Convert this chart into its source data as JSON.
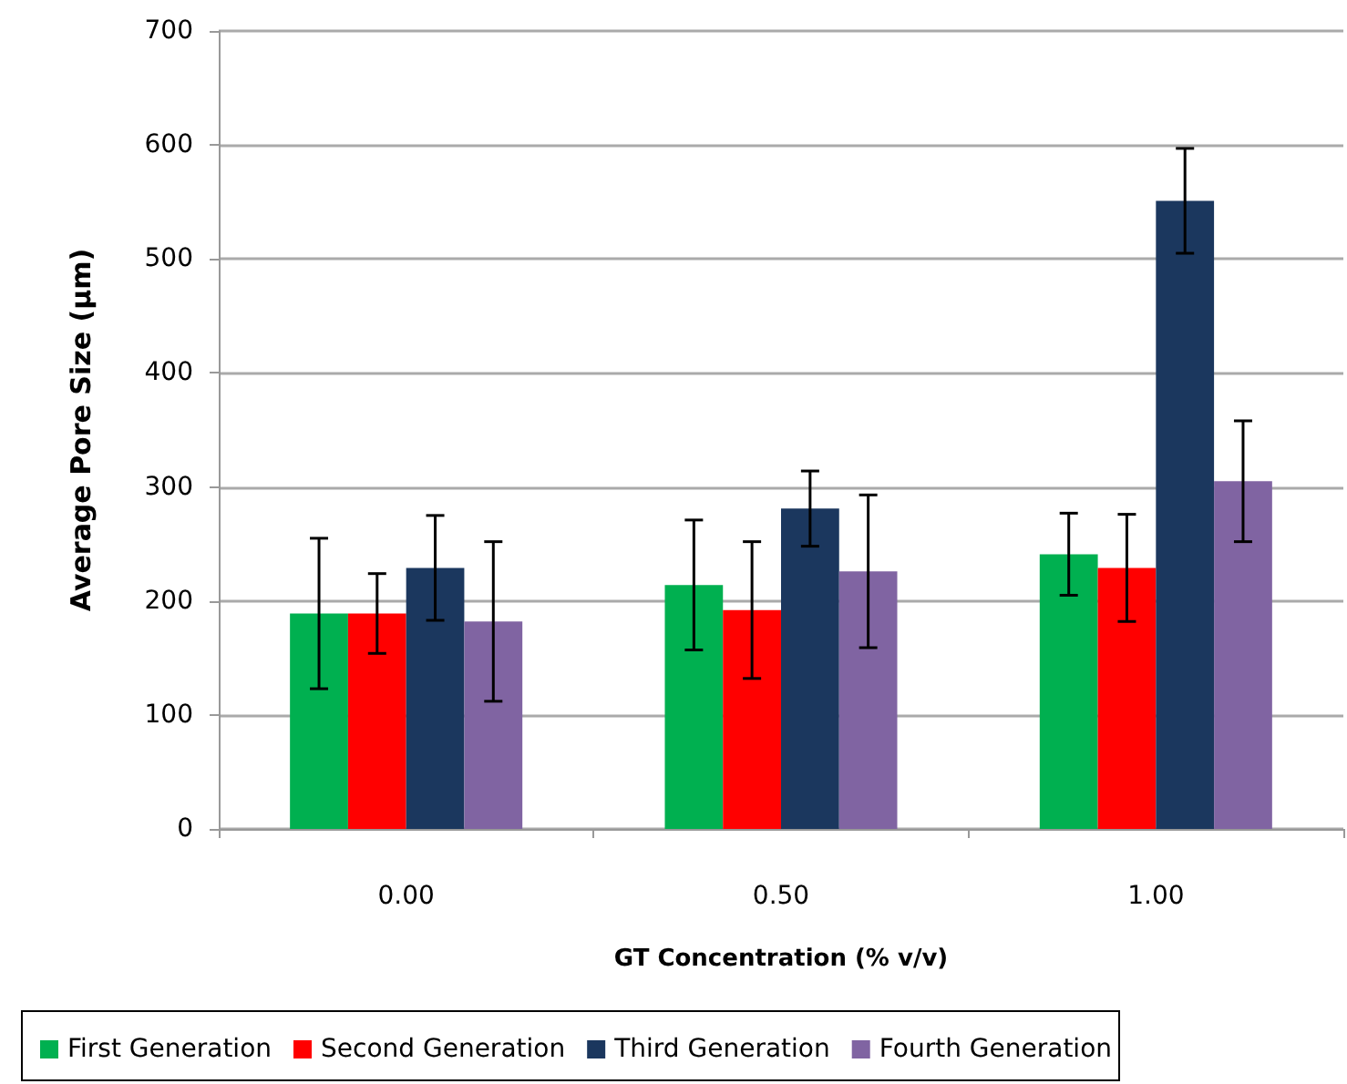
{
  "chart_data": {
    "type": "bar",
    "xlabel": "GT Concentration (% v/v)",
    "ylabel": "Average Pore Size (µm)",
    "categories": [
      "0.00",
      "0.50",
      "1.00"
    ],
    "series": [
      {
        "name": "First Generation",
        "color": "#00b050",
        "values": [
          189,
          214,
          241
        ],
        "errors": [
          66,
          57,
          36
        ]
      },
      {
        "name": "Second Generation",
        "color": "#ff0000",
        "values": [
          189,
          192,
          229
        ],
        "errors": [
          35,
          60,
          47
        ]
      },
      {
        "name": "Third Generation",
        "color": "#1b375e",
        "values": [
          229,
          281,
          551
        ],
        "errors": [
          46,
          33,
          46
        ]
      },
      {
        "name": "Fourth Generation",
        "color": "#8064a2",
        "values": [
          182,
          226,
          305
        ],
        "errors": [
          70,
          67,
          53
        ]
      }
    ],
    "ylim": [
      0,
      700
    ],
    "yticks": [
      0,
      100,
      200,
      300,
      400,
      500,
      600,
      700
    ],
    "grid": "y",
    "legend": "bottom"
  }
}
